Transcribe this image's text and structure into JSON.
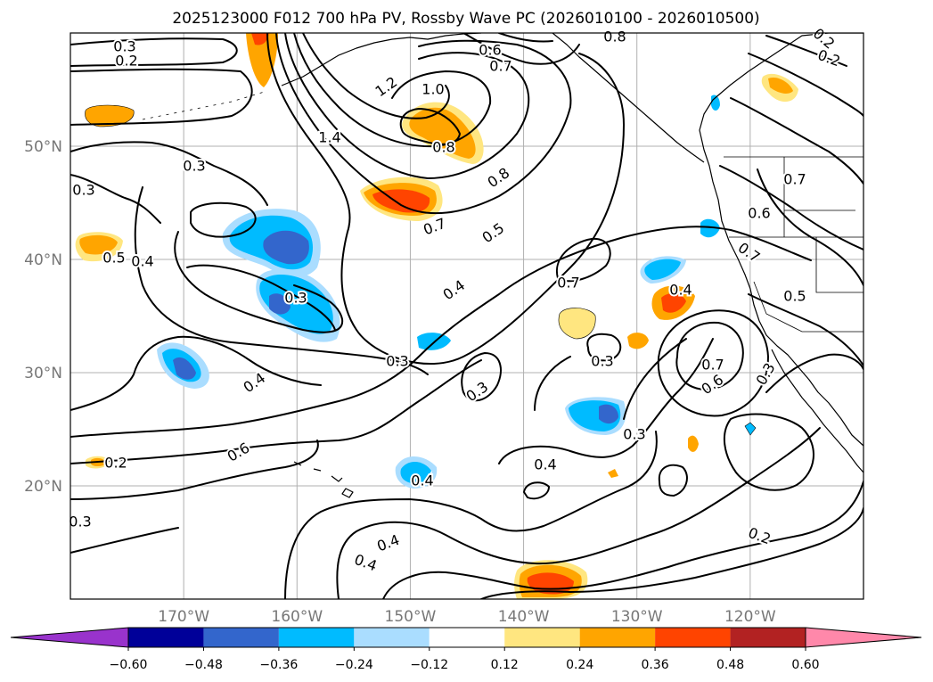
{
  "title": "2025123000 F012 700 hPa PV, Rossby Wave PC (2026010100 - 2026010500)",
  "map": {
    "lat_ticks": [
      {
        "label": "50°N",
        "value": 50
      },
      {
        "label": "40°N",
        "value": 40
      },
      {
        "label": "30°N",
        "value": 30
      },
      {
        "label": "20°N",
        "value": 20
      }
    ],
    "lon_ticks": [
      {
        "label": "170°W",
        "value": -170
      },
      {
        "label": "160°W",
        "value": -160
      },
      {
        "label": "150°W",
        "value": -150
      },
      {
        "label": "140°W",
        "value": -140
      },
      {
        "label": "130°W",
        "value": -130
      },
      {
        "label": "120°W",
        "value": -120
      }
    ],
    "contour_labels": [
      "0.3",
      "0.2",
      "0.6",
      "0.7",
      "0.8",
      "1.2",
      "1.0",
      "1.4",
      "0.8",
      "0.3",
      "0.8",
      "0.7",
      "0.3",
      "0.7",
      "0.6",
      "0.5",
      "0.7",
      "0.5",
      "0.4",
      "0.3",
      "0.4",
      "0.7",
      "0.4",
      "0.4",
      "0.3",
      "0.3",
      "0.3",
      "0.7",
      "0.6",
      "0.3",
      "0.4",
      "0.4",
      "0.3",
      "0.6",
      "0.2",
      "0.3",
      "0.4",
      "0.4",
      "0.2",
      "0.2",
      "0.2",
      "0.5"
    ]
  },
  "colorbar": {
    "ticks": [
      "−0.60",
      "−0.48",
      "−0.36",
      "−0.24",
      "−0.12",
      "0.12",
      "0.24",
      "0.36",
      "0.48",
      "0.60"
    ],
    "colors": [
      "#9933cc",
      "#000099",
      "#3366cc",
      "#00bbff",
      "#aaddff",
      "#ffffff",
      "#ffe680",
      "#ffa500",
      "#ff4400",
      "#b22222",
      "#ff88aa"
    ]
  }
}
